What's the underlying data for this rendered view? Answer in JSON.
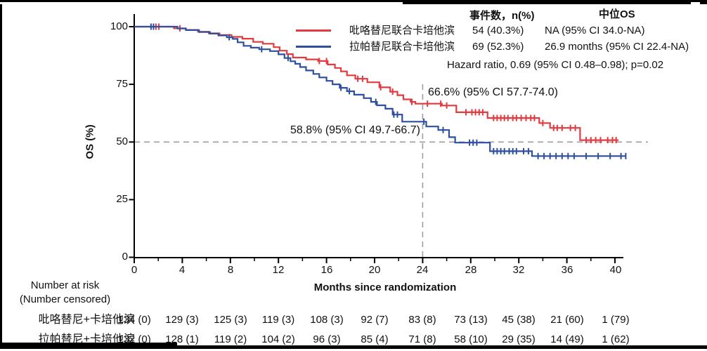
{
  "chart_data": {
    "type": "line",
    "subtype": "kaplan-meier-step",
    "title": "",
    "xlabel": "Months since randomization",
    "ylabel": "OS (%)",
    "xlim": [
      0,
      41.2
    ],
    "ylim": [
      0,
      100
    ],
    "xticks": [
      0,
      4,
      8,
      12,
      16,
      20,
      24,
      28,
      32,
      36,
      40
    ],
    "yticks": [
      0,
      25,
      50,
      75,
      100
    ],
    "grid": false,
    "legend_position": "top-right",
    "reference_lines": {
      "horizontal_pct": 50,
      "vertical_month": 24
    },
    "annotations": [
      {
        "series": "pyrotinib",
        "text": "66.6% (95% CI 57.7-74.0)",
        "at_month": 24
      },
      {
        "series": "lapatinib",
        "text": "58.8% (95% CI 49.7-66.7)",
        "at_month": 24
      }
    ],
    "series": [
      {
        "id": "pyrotinib",
        "name": "吡咯替尼联合卡培他滨",
        "color": "#e43a3f",
        "points": [
          [
            0,
            100
          ],
          [
            3.3,
            99.3
          ],
          [
            4.3,
            98.6
          ],
          [
            5.3,
            97.8
          ],
          [
            6.2,
            97.1
          ],
          [
            7.1,
            96.4
          ],
          [
            8.1,
            95.6
          ],
          [
            9.0,
            94.8
          ],
          [
            9.9,
            93.4
          ],
          [
            10.7,
            92.6
          ],
          [
            11.6,
            91.1
          ],
          [
            12.1,
            89.6
          ],
          [
            12.7,
            88.1
          ],
          [
            13.2,
            86.6
          ],
          [
            14.3,
            85.8
          ],
          [
            15.3,
            85.1
          ],
          [
            16.1,
            83.6
          ],
          [
            16.7,
            82.1
          ],
          [
            17.2,
            80.6
          ],
          [
            17.7,
            78.9
          ],
          [
            18.4,
            77.4
          ],
          [
            19.4,
            75.9
          ],
          [
            20.4,
            73.7
          ],
          [
            21.3,
            71.8
          ],
          [
            21.9,
            70.3
          ],
          [
            22.4,
            68.5
          ],
          [
            23.0,
            67.4
          ],
          [
            23.4,
            66.6
          ],
          [
            25.6,
            65.8
          ],
          [
            26.8,
            62.9
          ],
          [
            29.4,
            60.4
          ],
          [
            33.7,
            58.2
          ],
          [
            34.6,
            56.1
          ],
          [
            37.1,
            50.8
          ]
        ],
        "end_month": 40.3,
        "censor_months": [
          1.8,
          2.05,
          3.8,
          15.4,
          16.0,
          18.6,
          19.0,
          20.5,
          21.5,
          23.1,
          24.4,
          25.5,
          26.0,
          27.6,
          28.1,
          28.4,
          28.7,
          29.0,
          29.9,
          30.2,
          30.5,
          30.8,
          31.1,
          31.5,
          31.8,
          32.2,
          32.6,
          33.0,
          33.3,
          34.0,
          34.9,
          35.2,
          35.6,
          36.3,
          36.7,
          37.6,
          38.0,
          38.4,
          38.8,
          39.4,
          39.8,
          40.1
        ]
      },
      {
        "id": "lapatinib",
        "name": "拉帕替尼联合卡培他滨",
        "color": "#2e4f9e",
        "points": [
          [
            0,
            100
          ],
          [
            3.6,
            99.2
          ],
          [
            4.3,
            98.5
          ],
          [
            5.4,
            97.7
          ],
          [
            6.3,
            97.0
          ],
          [
            7.0,
            96.2
          ],
          [
            7.7,
            95.4
          ],
          [
            8.2,
            94.7
          ],
          [
            8.6,
            93.2
          ],
          [
            9.1,
            91.7
          ],
          [
            9.7,
            90.9
          ],
          [
            10.4,
            90.2
          ],
          [
            11.3,
            89.4
          ],
          [
            12.0,
            88.0
          ],
          [
            12.5,
            86.4
          ],
          [
            13.0,
            85.0
          ],
          [
            13.4,
            83.9
          ],
          [
            13.8,
            82.5
          ],
          [
            14.3,
            81.0
          ],
          [
            14.9,
            79.5
          ],
          [
            15.4,
            78.0
          ],
          [
            16.0,
            76.5
          ],
          [
            16.5,
            75.0
          ],
          [
            17.1,
            73.5
          ],
          [
            17.7,
            72.0
          ],
          [
            18.3,
            70.5
          ],
          [
            19.1,
            69.0
          ],
          [
            19.7,
            67.4
          ],
          [
            20.2,
            65.9
          ],
          [
            20.9,
            64.4
          ],
          [
            21.5,
            61.9
          ],
          [
            22.3,
            58.8
          ],
          [
            24.3,
            56.7
          ],
          [
            25.3,
            55.2
          ],
          [
            26.2,
            52.1
          ],
          [
            26.7,
            49.7
          ],
          [
            29.6,
            46.0
          ],
          [
            33.1,
            43.9
          ]
        ],
        "end_month": 40.9,
        "censor_months": [
          1.4,
          1.6,
          7.9,
          10.6,
          12.8,
          17.2,
          17.9,
          20.1,
          21.6,
          21.9,
          24.1,
          25.7,
          27.9,
          28.2,
          28.5,
          29.9,
          30.2,
          30.5,
          30.8,
          31.2,
          31.5,
          31.8,
          32.4,
          32.8,
          33.6,
          34.1,
          34.6,
          35.1,
          35.6,
          36.1,
          36.6,
          37.6,
          38.6,
          39.6,
          40.5,
          40.9
        ]
      }
    ]
  },
  "axis": {
    "y_tick_labels": [
      "100",
      "75",
      "50",
      "25",
      "0"
    ],
    "x_tick_labels": [
      "0",
      "4",
      "8",
      "12",
      "16",
      "20",
      "24",
      "28",
      "32",
      "36",
      "40"
    ],
    "ylabel": "OS (%)",
    "xlabel": "Months since randomization"
  },
  "legend": {
    "col_events_header": "事件数，n(%)",
    "col_median_header": "中位OS",
    "rows": [
      {
        "label": "吡咯替尼联合卡培他滨",
        "events": "54 (40.3%)",
        "median": "NA (95% CI 34.0-NA)"
      },
      {
        "label": "拉帕替尼联合卡培他滨",
        "events": "69 (52.3%)",
        "median": "26.9 months (95% CI 22.4-NA)"
      }
    ],
    "hazard_text": "Hazard ratio, 0.69 (95% CI 0.48–0.98); p=0.02"
  },
  "annotation_texts": {
    "red_at_24": "66.6% (95% CI 57.7-74.0)",
    "blue_at_24": "58.8% (95% CI 49.7-66.7)"
  },
  "risk_table": {
    "header_line1": "Number at risk",
    "header_line2": "(Number censored)",
    "rows": [
      {
        "label": "吡咯替尼+卡培他滨",
        "values": [
          "134 (0)",
          "129 (3)",
          "125 (3)",
          "119 (3)",
          "108 (3)",
          "92 (7)",
          "83 (8)",
          "73 (13)",
          "45 (38)",
          "21 (60)",
          "1 (79)"
        ]
      },
      {
        "label": "拉帕替尼+卡培他滨",
        "values": [
          "132 (0)",
          "128 (1)",
          "119 (2)",
          "104 (2)",
          "96 (3)",
          "85 (4)",
          "71 (8)",
          "58 (10)",
          "29 (35)",
          "14 (49)",
          "1 (62)"
        ]
      }
    ]
  }
}
